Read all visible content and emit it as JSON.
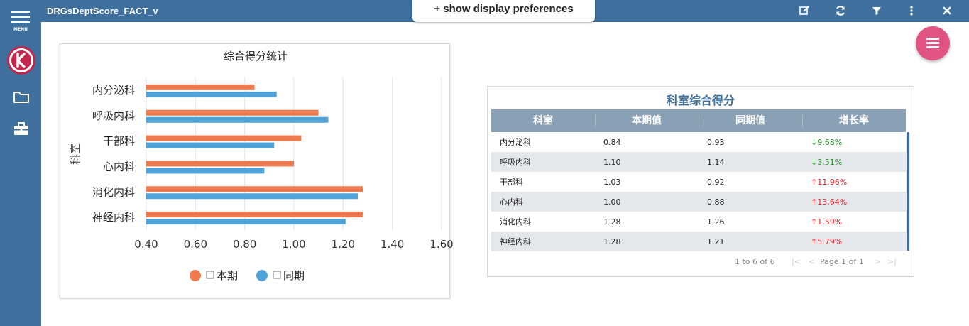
{
  "app": {
    "title": "DRGsDeptScore_FACT_v",
    "menu_label": "MENU",
    "prefs_label": "+ show display preferences",
    "toolbar_icons": [
      "edit-icon",
      "refresh-icon",
      "filter-icon",
      "more-vertical-icon",
      "close-icon"
    ]
  },
  "sidebar": {
    "items": [
      {
        "icon": "logo-k",
        "label": "K"
      },
      {
        "icon": "folder-icon"
      },
      {
        "icon": "briefcase-icon"
      }
    ]
  },
  "colors": {
    "primary": "#3f6f9c",
    "series_current": "#ef7a4f",
    "series_previous": "#4fa3d8",
    "fab": "#e05382",
    "up": "#e0262c",
    "down": "#2e8b2e"
  },
  "chart_data": {
    "type": "bar",
    "orientation": "horizontal",
    "title": "综合得分统计",
    "xlabel": "",
    "ylabel": "科室",
    "categories": [
      "内分泌科",
      "呼吸内科",
      "干部科",
      "心内科",
      "消化内科",
      "神经内科"
    ],
    "series": [
      {
        "name": "本期",
        "values": [
          0.84,
          1.1,
          1.03,
          1.0,
          1.28,
          1.28
        ]
      },
      {
        "name": "同期",
        "values": [
          0.93,
          1.14,
          0.92,
          0.88,
          1.26,
          1.21
        ]
      }
    ],
    "xlim": [
      0.4,
      1.6
    ],
    "xticks": [
      "0.40",
      "0.60",
      "0.80",
      "1.00",
      "1.20",
      "1.40",
      "1.60"
    ],
    "grid": true,
    "legend_position": "bottom"
  },
  "table": {
    "title": "科室综合得分",
    "columns": [
      "科室",
      "本期值",
      "同期值",
      "增长率"
    ],
    "rows": [
      {
        "dept": "内分泌科",
        "current": "0.84",
        "previous": "0.93",
        "growth": "↓9.68%",
        "dir": "down"
      },
      {
        "dept": "呼吸内科",
        "current": "1.10",
        "previous": "1.14",
        "growth": "↓3.51%",
        "dir": "down"
      },
      {
        "dept": "干部科",
        "current": "1.03",
        "previous": "0.92",
        "growth": "↑11.96%",
        "dir": "up"
      },
      {
        "dept": "心内科",
        "current": "1.00",
        "previous": "0.88",
        "growth": "↑13.64%",
        "dir": "up"
      },
      {
        "dept": "消化内科",
        "current": "1.28",
        "previous": "1.26",
        "growth": "↑1.59%",
        "dir": "up"
      },
      {
        "dept": "神经内科",
        "current": "1.28",
        "previous": "1.21",
        "growth": "↑5.79%",
        "dir": "up"
      }
    ],
    "pager": {
      "range": "1 to 6 of 6",
      "page": "Page 1 of 1",
      "first": "|<",
      "prev": "<",
      "next": ">",
      "last": ">|"
    }
  }
}
